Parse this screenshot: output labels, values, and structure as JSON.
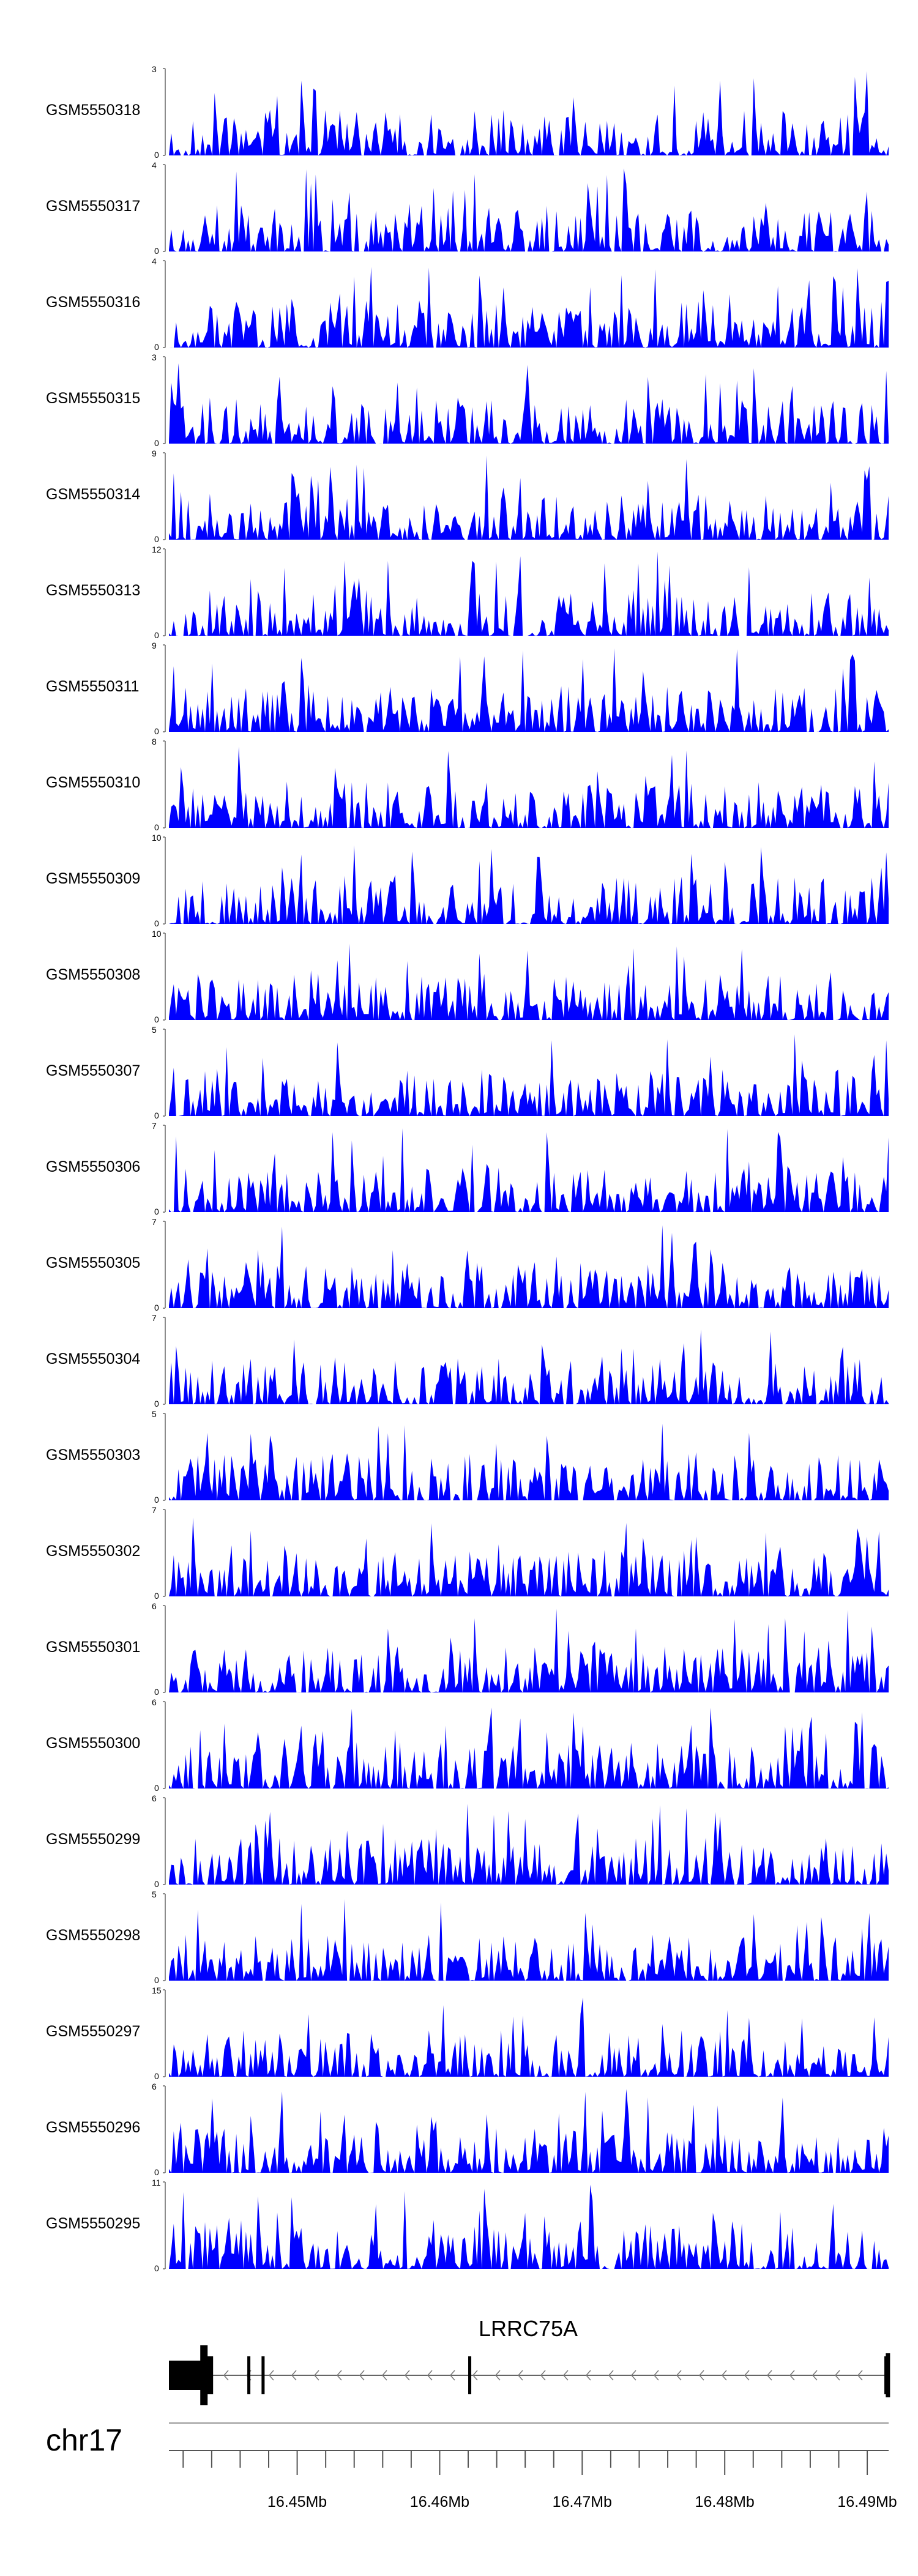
{
  "chart_data": {
    "type": "area",
    "color": "#0000ff",
    "x_range": [
      16.441,
      16.4915
    ],
    "x_unit": "Mb",
    "tracks": [
      {
        "name": "GSM5550318",
        "ymax": 3,
        "seed": 11
      },
      {
        "name": "GSM5550317",
        "ymax": 4,
        "seed": 23
      },
      {
        "name": "GSM5550316",
        "ymax": 4,
        "seed": 37
      },
      {
        "name": "GSM5550315",
        "ymax": 3,
        "seed": 41
      },
      {
        "name": "GSM5550314",
        "ymax": 9,
        "seed": 53
      },
      {
        "name": "GSM5550313",
        "ymax": 12,
        "seed": 67
      },
      {
        "name": "GSM5550311",
        "ymax": 9,
        "seed": 71
      },
      {
        "name": "GSM5550310",
        "ymax": 8,
        "seed": 83
      },
      {
        "name": "GSM5550309",
        "ymax": 10,
        "seed": 97
      },
      {
        "name": "GSM5550308",
        "ymax": 10,
        "seed": 101
      },
      {
        "name": "GSM5550307",
        "ymax": 5,
        "seed": 113
      },
      {
        "name": "GSM5550306",
        "ymax": 7,
        "seed": 127
      },
      {
        "name": "GSM5550305",
        "ymax": 7,
        "seed": 131
      },
      {
        "name": "GSM5550304",
        "ymax": 7,
        "seed": 149
      },
      {
        "name": "GSM5550303",
        "ymax": 5,
        "seed": 151
      },
      {
        "name": "GSM5550302",
        "ymax": 7,
        "seed": 163
      },
      {
        "name": "GSM5550301",
        "ymax": 6,
        "seed": 173
      },
      {
        "name": "GSM5550300",
        "ymax": 6,
        "seed": 181
      },
      {
        "name": "GSM5550299",
        "ymax": 6,
        "seed": 191
      },
      {
        "name": "GSM5550298",
        "ymax": 5,
        "seed": 197
      },
      {
        "name": "GSM5550297",
        "ymax": 15,
        "seed": 211
      },
      {
        "name": "GSM5550296",
        "ymax": 6,
        "seed": 223
      },
      {
        "name": "GSM5550295",
        "ymax": 11,
        "seed": 227
      }
    ],
    "gene": {
      "name": "LRRC75A",
      "strand": "-",
      "start": 16.441,
      "end": 16.4915,
      "exons": [
        [
          16.441,
          16.4435
        ],
        [
          16.4437,
          16.4441
        ],
        [
          16.4465,
          16.4467
        ],
        [
          16.4475,
          16.4477
        ],
        [
          16.462,
          16.4622
        ],
        [
          16.4912,
          16.4915
        ]
      ]
    },
    "chromosome": "chr17",
    "axis_ticks": [
      {
        "pos": 16.45,
        "label": "16.45Mb"
      },
      {
        "pos": 16.46,
        "label": "16.46Mb"
      },
      {
        "pos": 16.47,
        "label": "16.47Mb"
      },
      {
        "pos": 16.48,
        "label": "16.48Mb"
      },
      {
        "pos": 16.49,
        "label": "16.49Mb"
      }
    ],
    "minor_tick_step": 0.002
  }
}
